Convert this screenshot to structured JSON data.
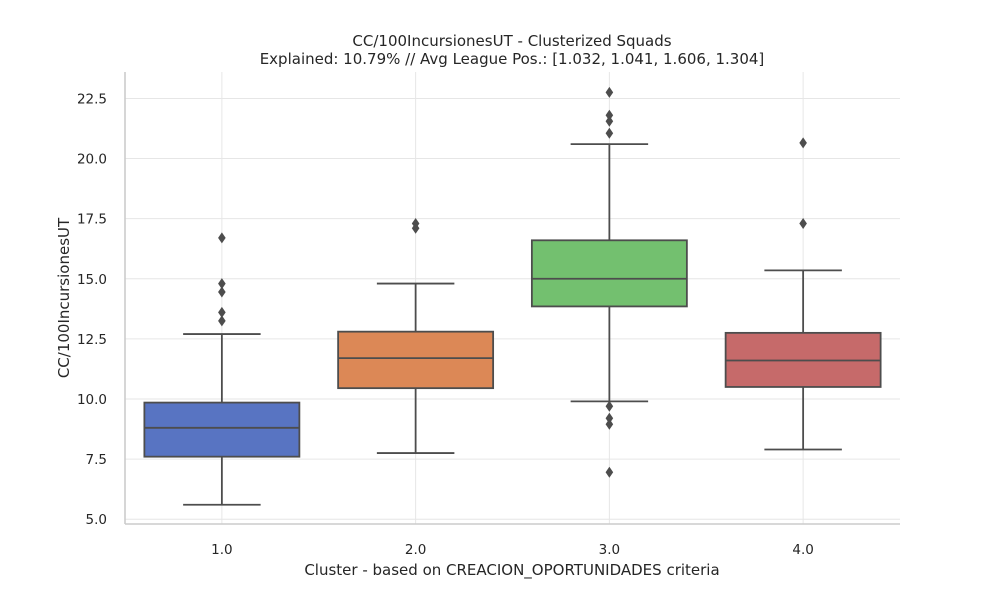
{
  "chart_data": {
    "type": "box",
    "title_line1": "CC/100IncursionesUT - Clusterized Squads",
    "title_line2": "Explained: 10.79% // Avg League Pos.: [1.032, 1.041, 1.606, 1.304]",
    "xlabel": "Cluster - based on CREACION_OPORTUNIDADES criteria",
    "ylabel": "CC/100IncursionesUT",
    "ylim": [
      4.8,
      23.6
    ],
    "yticks": [
      5.0,
      7.5,
      10.0,
      12.5,
      15.0,
      17.5,
      20.0,
      22.5
    ],
    "ytick_labels": [
      "5.0",
      "7.5",
      "10.0",
      "12.5",
      "15.0",
      "17.5",
      "20.0",
      "22.5"
    ],
    "grid": true,
    "boxes": [
      {
        "category": "1.0",
        "color": "#5874c2",
        "whislo": 5.6,
        "q1": 7.6,
        "med": 8.8,
        "q3": 9.85,
        "whishi": 12.7,
        "fliers": [
          13.25,
          13.6,
          14.45,
          14.8,
          16.7
        ]
      },
      {
        "category": "2.0",
        "color": "#dc8856",
        "whislo": 7.75,
        "q1": 10.45,
        "med": 11.7,
        "q3": 12.8,
        "whishi": 14.8,
        "fliers": [
          17.1,
          17.3
        ]
      },
      {
        "category": "3.0",
        "color": "#73c06f",
        "whislo": 9.9,
        "q1": 13.85,
        "med": 15.0,
        "q3": 16.6,
        "whishi": 20.6,
        "fliers": [
          6.95,
          8.95,
          9.2,
          9.7,
          21.05,
          21.55,
          21.8,
          22.75
        ]
      },
      {
        "category": "4.0",
        "color": "#c66a6a",
        "whislo": 7.9,
        "q1": 10.5,
        "med": 11.6,
        "q3": 12.75,
        "whishi": 15.35,
        "fliers": [
          17.3,
          20.65
        ]
      }
    ]
  }
}
